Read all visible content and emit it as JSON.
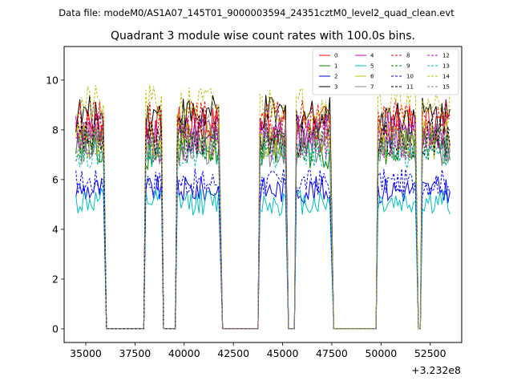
{
  "chart_data": {
    "type": "line",
    "suptitle": "Data file: modeM0/AS1A07_145T01_9000003594_24351cztM0_level2_quad_clean.evt",
    "title": "Quadrant 3 module wise count rates with 100.0s bins.",
    "xlabel": "",
    "ylabel": "",
    "x_offset_label": "+3.232e8",
    "xlim": [
      33900,
      54100
    ],
    "ylim": [
      -0.55,
      11.35
    ],
    "xticks": [
      35000,
      37500,
      40000,
      42500,
      45000,
      47500,
      50000,
      52500
    ],
    "xtick_labels": [
      "35000",
      "37500",
      "40000",
      "42500",
      "45000",
      "47500",
      "50000",
      "52500"
    ],
    "yticks": [
      0,
      2,
      4,
      6,
      8,
      10
    ],
    "ytick_labels": [
      "0",
      "2",
      "4",
      "6",
      "8",
      "10"
    ],
    "grid": false,
    "legend_position": "top-right",
    "segments": [
      [
        34500,
        35900
      ],
      [
        38050,
        38850
      ],
      [
        39650,
        41800
      ],
      [
        43850,
        45200
      ],
      [
        45700,
        47450
      ],
      [
        49850,
        51800
      ],
      [
        52100,
        53500
      ]
    ],
    "gaps_zero": [
      [
        36050,
        37950
      ],
      [
        38950,
        39550
      ],
      [
        41950,
        43750
      ],
      [
        45300,
        45600
      ],
      [
        47600,
        49750
      ],
      [
        51900,
        52000
      ]
    ],
    "series": [
      {
        "name": "0",
        "color": "#ff0000",
        "dash": "solid",
        "level": 8.2
      },
      {
        "name": "1",
        "color": "#008000",
        "dash": "solid",
        "level": 7.2
      },
      {
        "name": "2",
        "color": "#0000ff",
        "dash": "solid",
        "level": 5.6
      },
      {
        "name": "3",
        "color": "#000000",
        "dash": "solid",
        "level": 8.6
      },
      {
        "name": "4",
        "color": "#bf00bf",
        "dash": "solid",
        "level": 7.9
      },
      {
        "name": "5",
        "color": "#00bfbf",
        "dash": "solid",
        "level": 5.1
      },
      {
        "name": "6",
        "color": "#bfbf00",
        "dash": "solid",
        "level": 7.6
      },
      {
        "name": "7",
        "color": "#808080",
        "dash": "solid",
        "level": 7.3
      },
      {
        "name": "8",
        "color": "#ff0000",
        "dash": "dashed",
        "level": 8.4
      },
      {
        "name": "9",
        "color": "#008000",
        "dash": "dashed",
        "level": 7.4
      },
      {
        "name": "10",
        "color": "#0000ff",
        "dash": "dashed",
        "level": 5.9
      },
      {
        "name": "11",
        "color": "#000000",
        "dash": "dashed",
        "level": 7.7
      },
      {
        "name": "12",
        "color": "#bf00bf",
        "dash": "dashed",
        "level": 7.5
      },
      {
        "name": "13",
        "color": "#00bfbf",
        "dash": "dashed",
        "level": 7.0
      },
      {
        "name": "14",
        "color": "#bfbf00",
        "dash": "dashed",
        "level": 9.0
      },
      {
        "name": "15",
        "color": "#808080",
        "dash": "dashed",
        "level": 7.8
      }
    ]
  }
}
